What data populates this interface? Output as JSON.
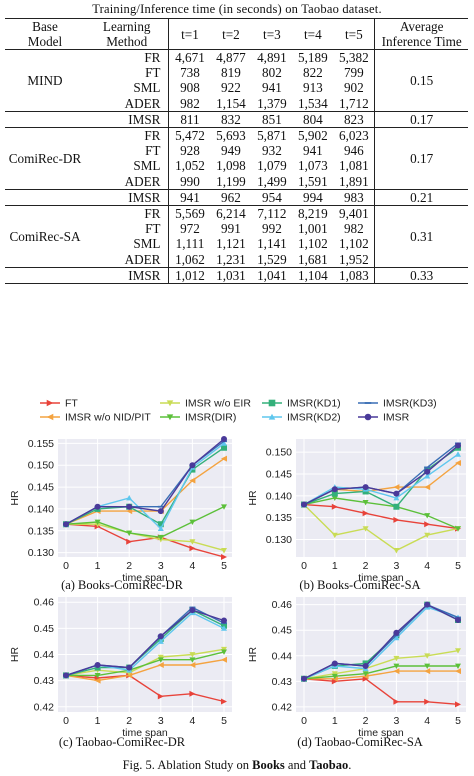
{
  "table": {
    "caption": "Training/Inference time (in seconds) on Taobao dataset.",
    "headers": {
      "base_model": [
        "Base",
        "Model"
      ],
      "learning_method": [
        "Learning",
        "Method"
      ],
      "t": [
        "t=1",
        "t=2",
        "t=3",
        "t=4",
        "t=5"
      ],
      "avg": [
        "Average",
        "Inference Time"
      ]
    },
    "groups": [
      {
        "model": "MIND",
        "rows": [
          {
            "method": "FR",
            "vals": [
              "4,671",
              "4,877",
              "4,891",
              "5,189",
              "5,382"
            ]
          },
          {
            "method": "FT",
            "vals": [
              "738",
              "819",
              "802",
              "822",
              "799"
            ]
          },
          {
            "method": "SML",
            "vals": [
              "908",
              "922",
              "941",
              "913",
              "902"
            ]
          },
          {
            "method": "ADER",
            "vals": [
              "982",
              "1,154",
              "1,379",
              "1,534",
              "1,712"
            ]
          }
        ],
        "avg_main": "0.15",
        "imsr": {
          "method": "IMSR",
          "vals": [
            "811",
            "832",
            "851",
            "804",
            "823"
          ],
          "avg": "0.17"
        }
      },
      {
        "model": "ComiRec-DR",
        "rows": [
          {
            "method": "FR",
            "vals": [
              "5,472",
              "5,693",
              "5,871",
              "5,902",
              "6,023"
            ]
          },
          {
            "method": "FT",
            "vals": [
              "928",
              "949",
              "932",
              "941",
              "946"
            ]
          },
          {
            "method": "SML",
            "vals": [
              "1,052",
              "1,098",
              "1,079",
              "1,073",
              "1,081"
            ]
          },
          {
            "method": "ADER",
            "vals": [
              "990",
              "1,199",
              "1,499",
              "1,591",
              "1,891"
            ]
          }
        ],
        "avg_main": "0.17",
        "imsr": {
          "method": "IMSR",
          "vals": [
            "941",
            "962",
            "954",
            "994",
            "983"
          ],
          "avg": "0.21"
        }
      },
      {
        "model": "ComiRec-SA",
        "rows": [
          {
            "method": "FR",
            "vals": [
              "5,569",
              "6,214",
              "7,112",
              "8,219",
              "9,401"
            ]
          },
          {
            "method": "FT",
            "vals": [
              "972",
              "991",
              "992",
              "1,001",
              "982"
            ]
          },
          {
            "method": "SML",
            "vals": [
              "1,111",
              "1,121",
              "1,141",
              "1,102",
              "1,102"
            ]
          },
          {
            "method": "ADER",
            "vals": [
              "1,062",
              "1,231",
              "1,529",
              "1,681",
              "1,952"
            ]
          }
        ],
        "avg_main": "0.31",
        "imsr": {
          "method": "IMSR",
          "vals": [
            "1,012",
            "1,031",
            "1,041",
            "1,104",
            "1,083"
          ],
          "avg": "0.33"
        }
      }
    ]
  },
  "legend": [
    {
      "name": "FT",
      "color": "#e8433a",
      "marker": "arrow-right"
    },
    {
      "name": "IMSR w/o NID/PIT",
      "color": "#f4a340",
      "marker": "arrow-left"
    },
    {
      "name": "IMSR w/o EIR",
      "color": "#c9dc55",
      "marker": "tri-down"
    },
    {
      "name": "IMSR(DIR)",
      "color": "#5cc03a",
      "marker": "tri-down"
    },
    {
      "name": "IMSR(KD1)",
      "color": "#33b07a",
      "marker": "square"
    },
    {
      "name": "IMSR(KD2)",
      "color": "#5fc7ee",
      "marker": "tri-up"
    },
    {
      "name": "IMSR(KD3)",
      "color": "#3a6fb5",
      "marker": "dash"
    },
    {
      "name": "IMSR",
      "color": "#4a3a9a",
      "marker": "circle"
    }
  ],
  "chart_data": [
    {
      "type": "line",
      "caption": "(a) Books-ComiRec-DR",
      "xlabel": "time span",
      "ylabel": "HR",
      "x": [
        0,
        1,
        2,
        3,
        4,
        5
      ],
      "xticks": [
        "0",
        "1",
        "2",
        "3",
        "4",
        "5"
      ],
      "ylim": [
        0.129,
        0.156
      ],
      "yticks": [
        "0.130",
        "0.135",
        "0.140",
        "0.145",
        "0.150",
        "0.155"
      ],
      "series": [
        {
          "name": "FT",
          "values": [
            0.1365,
            0.136,
            0.1325,
            0.1335,
            0.131,
            0.129
          ]
        },
        {
          "name": "IMSR w/o NID/PIT",
          "values": [
            0.1365,
            0.1395,
            0.1395,
            0.1395,
            0.1465,
            0.1515
          ]
        },
        {
          "name": "IMSR w/o EIR",
          "values": [
            0.1365,
            0.1365,
            0.1345,
            0.133,
            0.1325,
            0.1305
          ]
        },
        {
          "name": "IMSR(DIR)",
          "values": [
            0.1365,
            0.137,
            0.1345,
            0.1335,
            0.137,
            0.1405
          ]
        },
        {
          "name": "IMSR(KD1)",
          "values": [
            0.1365,
            0.14,
            0.1405,
            0.1365,
            0.149,
            0.154
          ]
        },
        {
          "name": "IMSR(KD2)",
          "values": [
            0.1365,
            0.1405,
            0.1425,
            0.1355,
            0.1495,
            0.155
          ]
        },
        {
          "name": "IMSR(KD3)",
          "values": [
            0.1365,
            0.1405,
            0.1405,
            0.1405,
            0.15,
            0.1555
          ]
        },
        {
          "name": "IMSR",
          "values": [
            0.1365,
            0.1405,
            0.1405,
            0.1395,
            0.15,
            0.156
          ]
        }
      ]
    },
    {
      "type": "line",
      "caption": "(b) Books-ComiRec-SA",
      "xlabel": "time span",
      "ylabel": "HR",
      "x": [
        0,
        1,
        2,
        3,
        4,
        5
      ],
      "xticks": [
        "0",
        "1",
        "2",
        "3",
        "4",
        "5"
      ],
      "ylim": [
        0.126,
        0.153
      ],
      "yticks": [
        "0.130",
        "0.135",
        "0.140",
        "0.145",
        "0.150"
      ],
      "series": [
        {
          "name": "FT",
          "values": [
            0.138,
            0.1375,
            0.136,
            0.1345,
            0.1335,
            0.1325
          ]
        },
        {
          "name": "IMSR w/o NID/PIT",
          "values": [
            0.138,
            0.1415,
            0.141,
            0.142,
            0.142,
            0.1475
          ]
        },
        {
          "name": "IMSR w/o EIR",
          "values": [
            0.138,
            0.131,
            0.1325,
            0.1275,
            0.131,
            0.1325
          ]
        },
        {
          "name": "IMSR(DIR)",
          "values": [
            0.138,
            0.1395,
            0.1385,
            0.1375,
            0.1355,
            0.1325
          ]
        },
        {
          "name": "IMSR(KD1)",
          "values": [
            0.138,
            0.1405,
            0.141,
            0.1375,
            0.146,
            0.151
          ]
        },
        {
          "name": "IMSR(KD2)",
          "values": [
            0.138,
            0.142,
            0.1415,
            0.1395,
            0.1445,
            0.1495
          ]
        },
        {
          "name": "IMSR(KD3)",
          "values": [
            0.138,
            0.1415,
            0.142,
            0.1405,
            0.1465,
            0.152
          ]
        },
        {
          "name": "IMSR",
          "values": [
            0.138,
            0.1415,
            0.142,
            0.1405,
            0.1455,
            0.1515
          ]
        }
      ]
    },
    {
      "type": "line",
      "caption": "(c) Taobao-ComiRec-DR",
      "xlabel": "time span",
      "ylabel": "HR",
      "x": [
        0,
        1,
        2,
        3,
        4,
        5
      ],
      "xticks": [
        "0",
        "1",
        "2",
        "3",
        "4",
        "5"
      ],
      "ylim": [
        0.418,
        0.462
      ],
      "yticks": [
        "0.42",
        "0.43",
        "0.44",
        "0.45",
        "0.46"
      ],
      "series": [
        {
          "name": "FT",
          "values": [
            0.432,
            0.431,
            0.432,
            0.424,
            0.425,
            0.422
          ]
        },
        {
          "name": "IMSR w/o NID/PIT",
          "values": [
            0.432,
            0.43,
            0.432,
            0.436,
            0.436,
            0.438
          ]
        },
        {
          "name": "IMSR w/o EIR",
          "values": [
            0.432,
            0.434,
            0.433,
            0.439,
            0.44,
            0.442
          ]
        },
        {
          "name": "IMSR(DIR)",
          "values": [
            0.432,
            0.432,
            0.434,
            0.438,
            0.438,
            0.441
          ]
        },
        {
          "name": "IMSR(KD1)",
          "values": [
            0.432,
            0.435,
            0.435,
            0.446,
            0.457,
            0.451
          ]
        },
        {
          "name": "IMSR(KD2)",
          "values": [
            0.432,
            0.436,
            0.434,
            0.445,
            0.456,
            0.45
          ]
        },
        {
          "name": "IMSR(KD3)",
          "values": [
            0.432,
            0.436,
            0.435,
            0.447,
            0.458,
            0.452
          ]
        },
        {
          "name": "IMSR",
          "values": [
            0.432,
            0.436,
            0.435,
            0.447,
            0.457,
            0.453
          ]
        }
      ]
    },
    {
      "type": "line",
      "caption": "(d) Taobao-ComiRec-SA",
      "xlabel": "time span",
      "ylabel": "HR",
      "x": [
        0,
        1,
        2,
        3,
        4,
        5
      ],
      "xticks": [
        "0",
        "1",
        "2",
        "3",
        "4",
        "5"
      ],
      "ylim": [
        0.418,
        0.463
      ],
      "yticks": [
        "0.42",
        "0.43",
        "0.44",
        "0.45",
        "0.46"
      ],
      "series": [
        {
          "name": "FT",
          "values": [
            0.431,
            0.43,
            0.431,
            0.422,
            0.422,
            0.421
          ]
        },
        {
          "name": "IMSR w/o NID/PIT",
          "values": [
            0.431,
            0.431,
            0.432,
            0.434,
            0.434,
            0.434
          ]
        },
        {
          "name": "IMSR w/o EIR",
          "values": [
            0.431,
            0.433,
            0.435,
            0.439,
            0.44,
            0.442
          ]
        },
        {
          "name": "IMSR(DIR)",
          "values": [
            0.431,
            0.432,
            0.433,
            0.436,
            0.436,
            0.436
          ]
        },
        {
          "name": "IMSR(KD1)",
          "values": [
            0.431,
            0.436,
            0.437,
            0.448,
            0.46,
            0.454
          ]
        },
        {
          "name": "IMSR(KD2)",
          "values": [
            0.431,
            0.436,
            0.435,
            0.447,
            0.459,
            0.455
          ]
        },
        {
          "name": "IMSR(KD3)",
          "values": [
            0.431,
            0.437,
            0.436,
            0.448,
            0.46,
            0.455
          ]
        },
        {
          "name": "IMSR",
          "values": [
            0.431,
            0.437,
            0.436,
            0.449,
            0.46,
            0.454
          ]
        }
      ]
    }
  ],
  "figure_caption": {
    "prefix": "Fig. 5.  Ablation Study on ",
    "b1": "Books",
    "mid": " and ",
    "b2": "Taobao",
    "suffix": "."
  }
}
